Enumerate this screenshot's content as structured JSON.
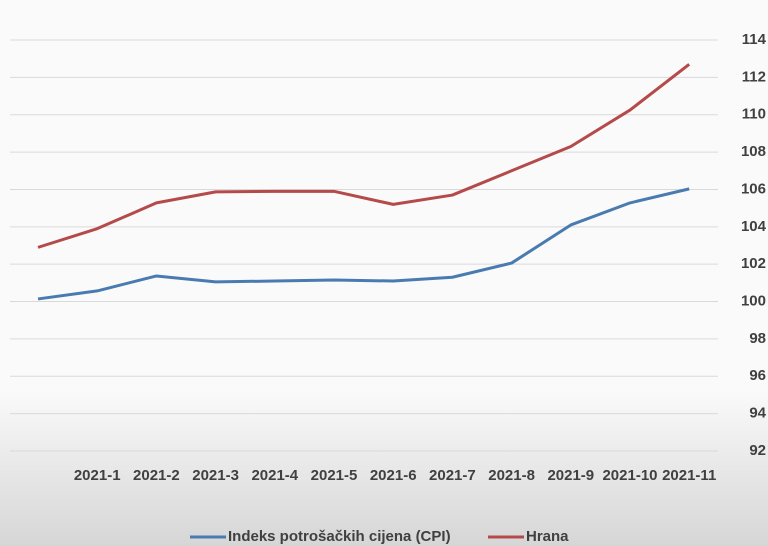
{
  "chart_data": {
    "type": "line",
    "categories": [
      null,
      "2021-1",
      "2021-2",
      "2021-3",
      "2021-4",
      "2021-5",
      "2021-6",
      "2021-7",
      "2021-8",
      "2021-9",
      "2021-10",
      "2021-11"
    ],
    "series": [
      {
        "name": "Indeks potrošačkih cijena (CPI)",
        "color": "#4a7bb0",
        "values": [
          100.14,
          100.57,
          101.37,
          101.05,
          101.1,
          101.15,
          101.1,
          101.3,
          102.06,
          104.1,
          105.28,
          106.03
        ]
      },
      {
        "name": "Hrana",
        "color": "#b54a4a",
        "values": [
          102.9,
          103.9,
          105.28,
          105.87,
          105.9,
          105.9,
          105.2,
          105.7,
          107.0,
          108.3,
          110.25,
          112.7
        ]
      }
    ],
    "ylim": [
      92,
      114
    ],
    "yticks": [
      92,
      94,
      96,
      98,
      100,
      102,
      104,
      106,
      108,
      110,
      112,
      114
    ],
    "grid": true,
    "legend": "bottom"
  }
}
